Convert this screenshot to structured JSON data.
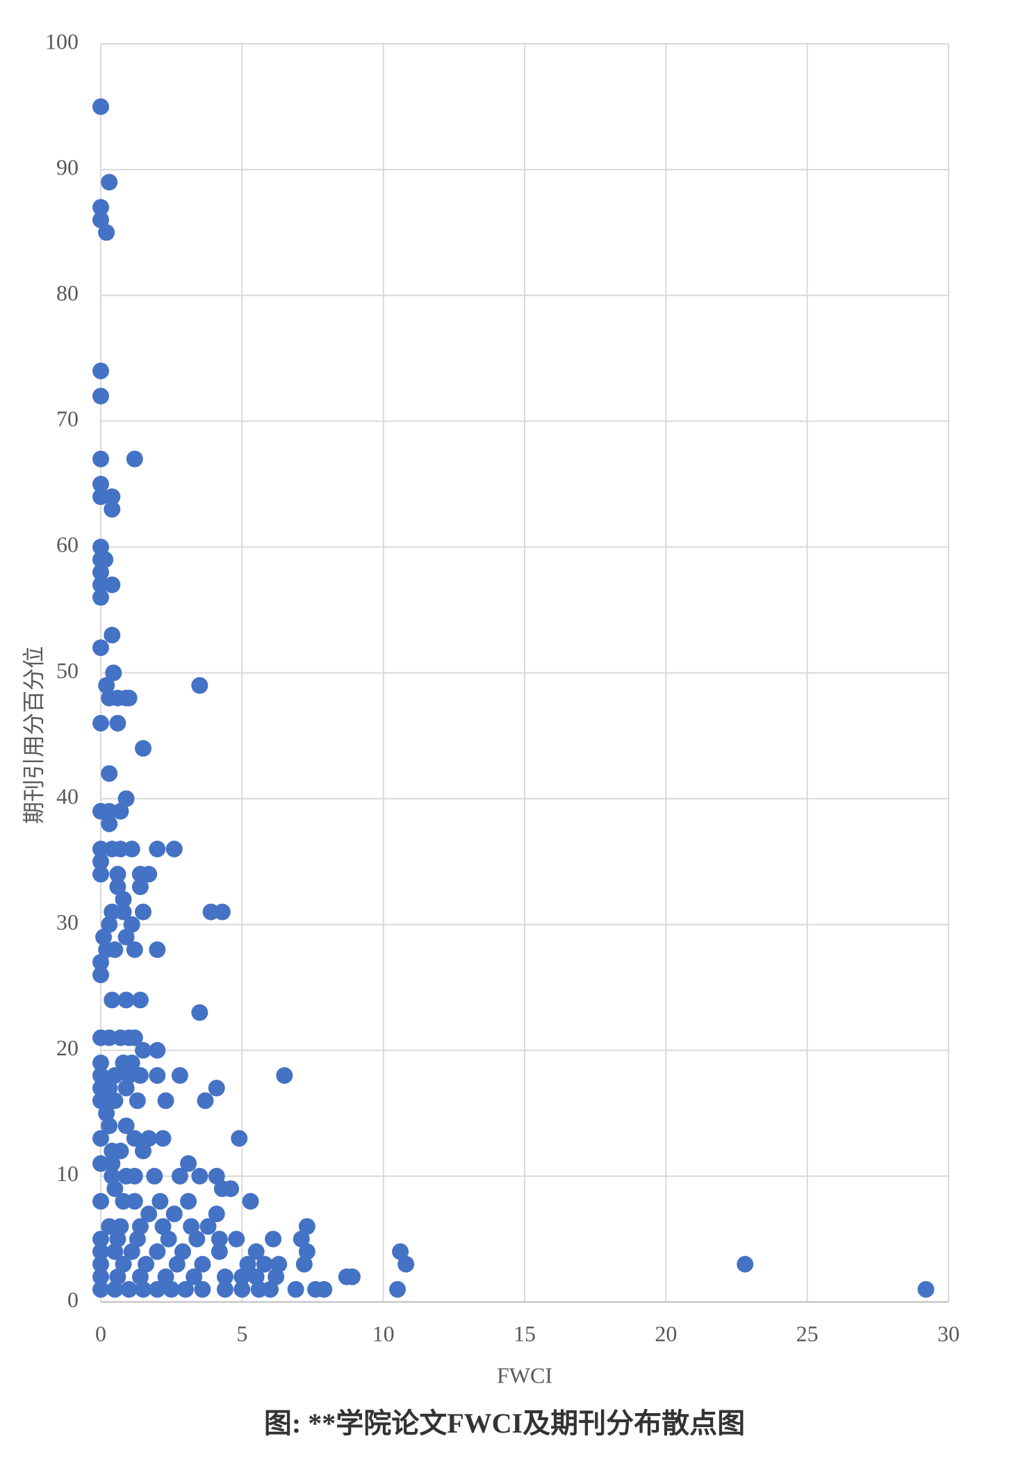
{
  "chart_data": {
    "type": "scatter",
    "caption": "图: **学院论文FWCI及期刊分布散点图",
    "x_label": "FWCI",
    "y_label": "期刊引用分百分位",
    "xlim": [
      0,
      30
    ],
    "xticks": [
      0,
      5,
      10,
      15,
      20,
      25,
      30
    ],
    "ylim": [
      0,
      100
    ],
    "yticks": [
      0,
      10,
      20,
      30,
      40,
      50,
      60,
      70,
      80,
      90,
      100
    ],
    "grid": true,
    "color": "#4472c4",
    "x": [
      0,
      0.3,
      0,
      0,
      0.2,
      0,
      0,
      0,
      1.2,
      0,
      0,
      0.4,
      0.4,
      0,
      0,
      0.15,
      0,
      0,
      0.4,
      0,
      0,
      0.4,
      0.45,
      0.2,
      3.5,
      0.3,
      0.6,
      0.9,
      1,
      0,
      0.6,
      1.5,
      0.3,
      0,
      0.3,
      0.7,
      0.9,
      0.3,
      0,
      0.4,
      0.7,
      1.1,
      2,
      2.6,
      0,
      0,
      0.6,
      1.4,
      1.7,
      0.6,
      1.4,
      0.8,
      0.4,
      0.8,
      1.5,
      3.9,
      4.3,
      0.3,
      1.1,
      0.1,
      0.9,
      0.2,
      0.5,
      1.2,
      2,
      0,
      0,
      0.4,
      0.9,
      1.4,
      0,
      0.3,
      0.7,
      1,
      1.2,
      3.5,
      1.5,
      2,
      0,
      0.8,
      1.1,
      0,
      0.5,
      1,
      1.4,
      2,
      2.8,
      6.5,
      0,
      0.3,
      0.9,
      4.1,
      0,
      0.5,
      1.3,
      2.3,
      3.7,
      0.2,
      0.3,
      0.9,
      0,
      1.2,
      1.7,
      2.2,
      4.9,
      0.4,
      0.7,
      1.5,
      0,
      0.4,
      3.1,
      0.4,
      0.9,
      1.2,
      1.9,
      2.8,
      3.5,
      4.1,
      0.5,
      4.3,
      4.6,
      0,
      0.8,
      1.2,
      2.1,
      3.1,
      5.3,
      1.7,
      2.6,
      4.1,
      0.3,
      0.7,
      1.4,
      2.2,
      3.2,
      3.8,
      7.3,
      0,
      0.6,
      1.3,
      2.4,
      3.4,
      4.2,
      4.8,
      6.1,
      7.1,
      0,
      0.5,
      1.1,
      2,
      2.9,
      4.2,
      5.5,
      7.3,
      10.6,
      0,
      0.8,
      1.6,
      2.7,
      3.6,
      5.2,
      5.8,
      6.3,
      7.2,
      10.8,
      22.8,
      0,
      0.6,
      1.4,
      2.3,
      3.3,
      4.4,
      5,
      5.5,
      6.2,
      8.7,
      8.9,
      0,
      0.5,
      1,
      1.5,
      2,
      2.5,
      3,
      3.6,
      4.4,
      5,
      5.6,
      6,
      6.9,
      7.6,
      7.9,
      10.5,
      29.2
    ],
    "values": [
      95,
      89,
      87,
      86,
      85,
      74,
      72,
      67,
      67,
      65,
      64,
      64,
      63,
      60,
      59,
      59,
      58,
      57,
      57,
      56,
      52,
      53,
      50,
      49,
      49,
      48,
      48,
      48,
      48,
      46,
      46,
      44,
      42,
      39,
      39,
      39,
      40,
      38,
      36,
      36,
      36,
      36,
      36,
      36,
      35,
      34,
      34,
      34,
      34,
      33,
      33,
      32,
      31,
      31,
      31,
      31,
      31,
      30,
      30,
      29,
      29,
      28,
      28,
      28,
      28,
      27,
      26,
      24,
      24,
      24,
      21,
      21,
      21,
      21,
      21,
      23,
      20,
      20,
      19,
      19,
      19,
      18,
      18,
      18,
      18,
      18,
      18,
      18,
      17,
      17,
      17,
      17,
      16,
      16,
      16,
      16,
      16,
      15,
      14,
      14,
      13,
      13,
      13,
      13,
      13,
      12,
      12,
      12,
      11,
      11,
      11,
      10,
      10,
      10,
      10,
      10,
      10,
      10,
      9,
      9,
      9,
      8,
      8,
      8,
      8,
      8,
      8,
      7,
      7,
      7,
      6,
      6,
      6,
      6,
      6,
      6,
      6,
      5,
      5,
      5,
      5,
      5,
      5,
      5,
      5,
      5,
      4,
      4,
      4,
      4,
      4,
      4,
      4,
      4,
      4,
      3,
      3,
      3,
      3,
      3,
      3,
      3,
      3,
      3,
      3,
      3,
      2,
      2,
      2,
      2,
      2,
      2,
      2,
      2,
      2,
      2,
      2,
      1,
      1,
      1,
      1,
      1,
      1,
      1,
      1,
      1,
      1,
      1,
      1,
      1,
      1,
      1,
      1,
      1
    ]
  }
}
